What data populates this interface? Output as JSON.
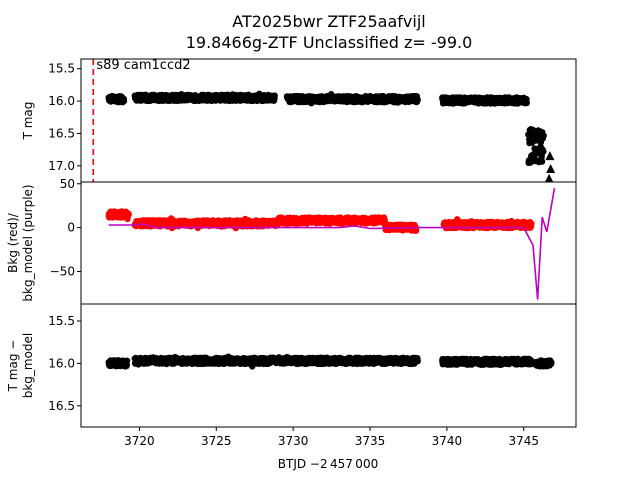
{
  "figure": {
    "title_line1": "AT2025bwr  ZTF25aafvijl",
    "title_line2": "19.8466g-ZTF Unclassified z= -99.0",
    "xlabel": "BTJD −2 457 000"
  },
  "chart_data": [
    {
      "type": "scatter",
      "panel": "top",
      "ylabel": "T mag",
      "y_inverted": true,
      "xlim": [
        3716.2,
        3748.4
      ],
      "ylim": [
        17.25,
        15.35
      ],
      "yticks": [
        15.5,
        16.0,
        16.5,
        17.0
      ],
      "ytick_labels": [
        "15.5",
        "16.0",
        "16.5",
        "17.0"
      ],
      "annotation": "s89 cam1ccd2",
      "vline": {
        "x": 3717.0,
        "color": "#ff0000",
        "style": "dashed"
      },
      "series": [
        {
          "color": "#000000",
          "marker": "circle",
          "segments": [
            {
              "x": [
                3718.0,
                3719.0
              ],
              "y_mean": 15.97
            },
            {
              "x": [
                3719.7,
                3728.8
              ],
              "y_mean": 15.95
            },
            {
              "x": [
                3729.6,
                3738.1
              ],
              "y_mean": 15.97
            },
            {
              "x": [
                3739.7,
                3745.2
              ],
              "y_mean": 15.99
            },
            {
              "x": [
                3745.3,
                3746.3
              ],
              "y_mean": 16.7
            }
          ]
        },
        {
          "color": "#000000",
          "marker": "triangle-up",
          "points": [
            {
              "x": 3746.7,
              "y": 16.85
            },
            {
              "x": 3746.75,
              "y": 17.05
            },
            {
              "x": 3746.65,
              "y": 17.2
            }
          ]
        }
      ]
    },
    {
      "type": "scatter",
      "panel": "middle",
      "ylabel": "Bkg (red)/\nbkg_model (purple)",
      "xlim": [
        3716.2,
        3748.4
      ],
      "ylim": [
        -87,
        52
      ],
      "yticks": [
        50,
        0,
        -50
      ],
      "ytick_labels": [
        "50",
        "0",
        "−50"
      ],
      "series": [
        {
          "color": "#ff0000",
          "marker": "circle",
          "segments": [
            {
              "x": [
                3718.0,
                3719.3
              ],
              "y_mean": 15
            },
            {
              "x": [
                3719.7,
                3729.0
              ],
              "y_mean": 5
            },
            {
              "x": [
                3729.0,
                3736.0
              ],
              "y_mean": 8
            },
            {
              "x": [
                3736.0,
                3738.0
              ],
              "y_mean": 0
            },
            {
              "x": [
                3739.8,
                3745.5
              ],
              "y_mean": 3
            }
          ]
        },
        {
          "color": "#c000c0",
          "type": "line",
          "points": [
            {
              "x": 3718.0,
              "y": 3
            },
            {
              "x": 3719.5,
              "y": 3
            },
            {
              "x": 3720.3,
              "y": 4
            },
            {
              "x": 3721.0,
              "y": 0
            },
            {
              "x": 3733.0,
              "y": 0
            },
            {
              "x": 3734.0,
              "y": 2
            },
            {
              "x": 3735.0,
              "y": -1
            },
            {
              "x": 3738.0,
              "y": 0
            },
            {
              "x": 3745.0,
              "y": 0
            },
            {
              "x": 3745.6,
              "y": -20
            },
            {
              "x": 3745.9,
              "y": -82
            },
            {
              "x": 3746.2,
              "y": 12
            },
            {
              "x": 3746.5,
              "y": -5
            },
            {
              "x": 3746.8,
              "y": 25
            },
            {
              "x": 3747.0,
              "y": 45
            }
          ]
        }
      ]
    },
    {
      "type": "scatter",
      "panel": "bottom",
      "ylabel": "T mag −\nbkg_model",
      "y_inverted": true,
      "xlim": [
        3716.2,
        3748.4
      ],
      "ylim": [
        16.75,
        15.3
      ],
      "yticks": [
        15.5,
        16.0,
        16.5
      ],
      "ytick_labels": [
        "15.5",
        "16.0",
        "16.5"
      ],
      "xticks": [
        3720,
        3725,
        3730,
        3735,
        3740,
        3745
      ],
      "xtick_labels": [
        "3720",
        "3725",
        "3730",
        "3735",
        "3740",
        "3745"
      ],
      "series": [
        {
          "color": "#000000",
          "marker": "circle",
          "segments": [
            {
              "x": [
                3718.0,
                3719.2
              ],
              "y_mean": 16.0
            },
            {
              "x": [
                3719.7,
                3738.1
              ],
              "y_mean": 15.97
            },
            {
              "x": [
                3739.7,
                3745.5
              ],
              "y_mean": 15.98
            },
            {
              "x": [
                3745.8,
                3746.8
              ],
              "y_mean": 16.0
            }
          ]
        }
      ]
    }
  ]
}
